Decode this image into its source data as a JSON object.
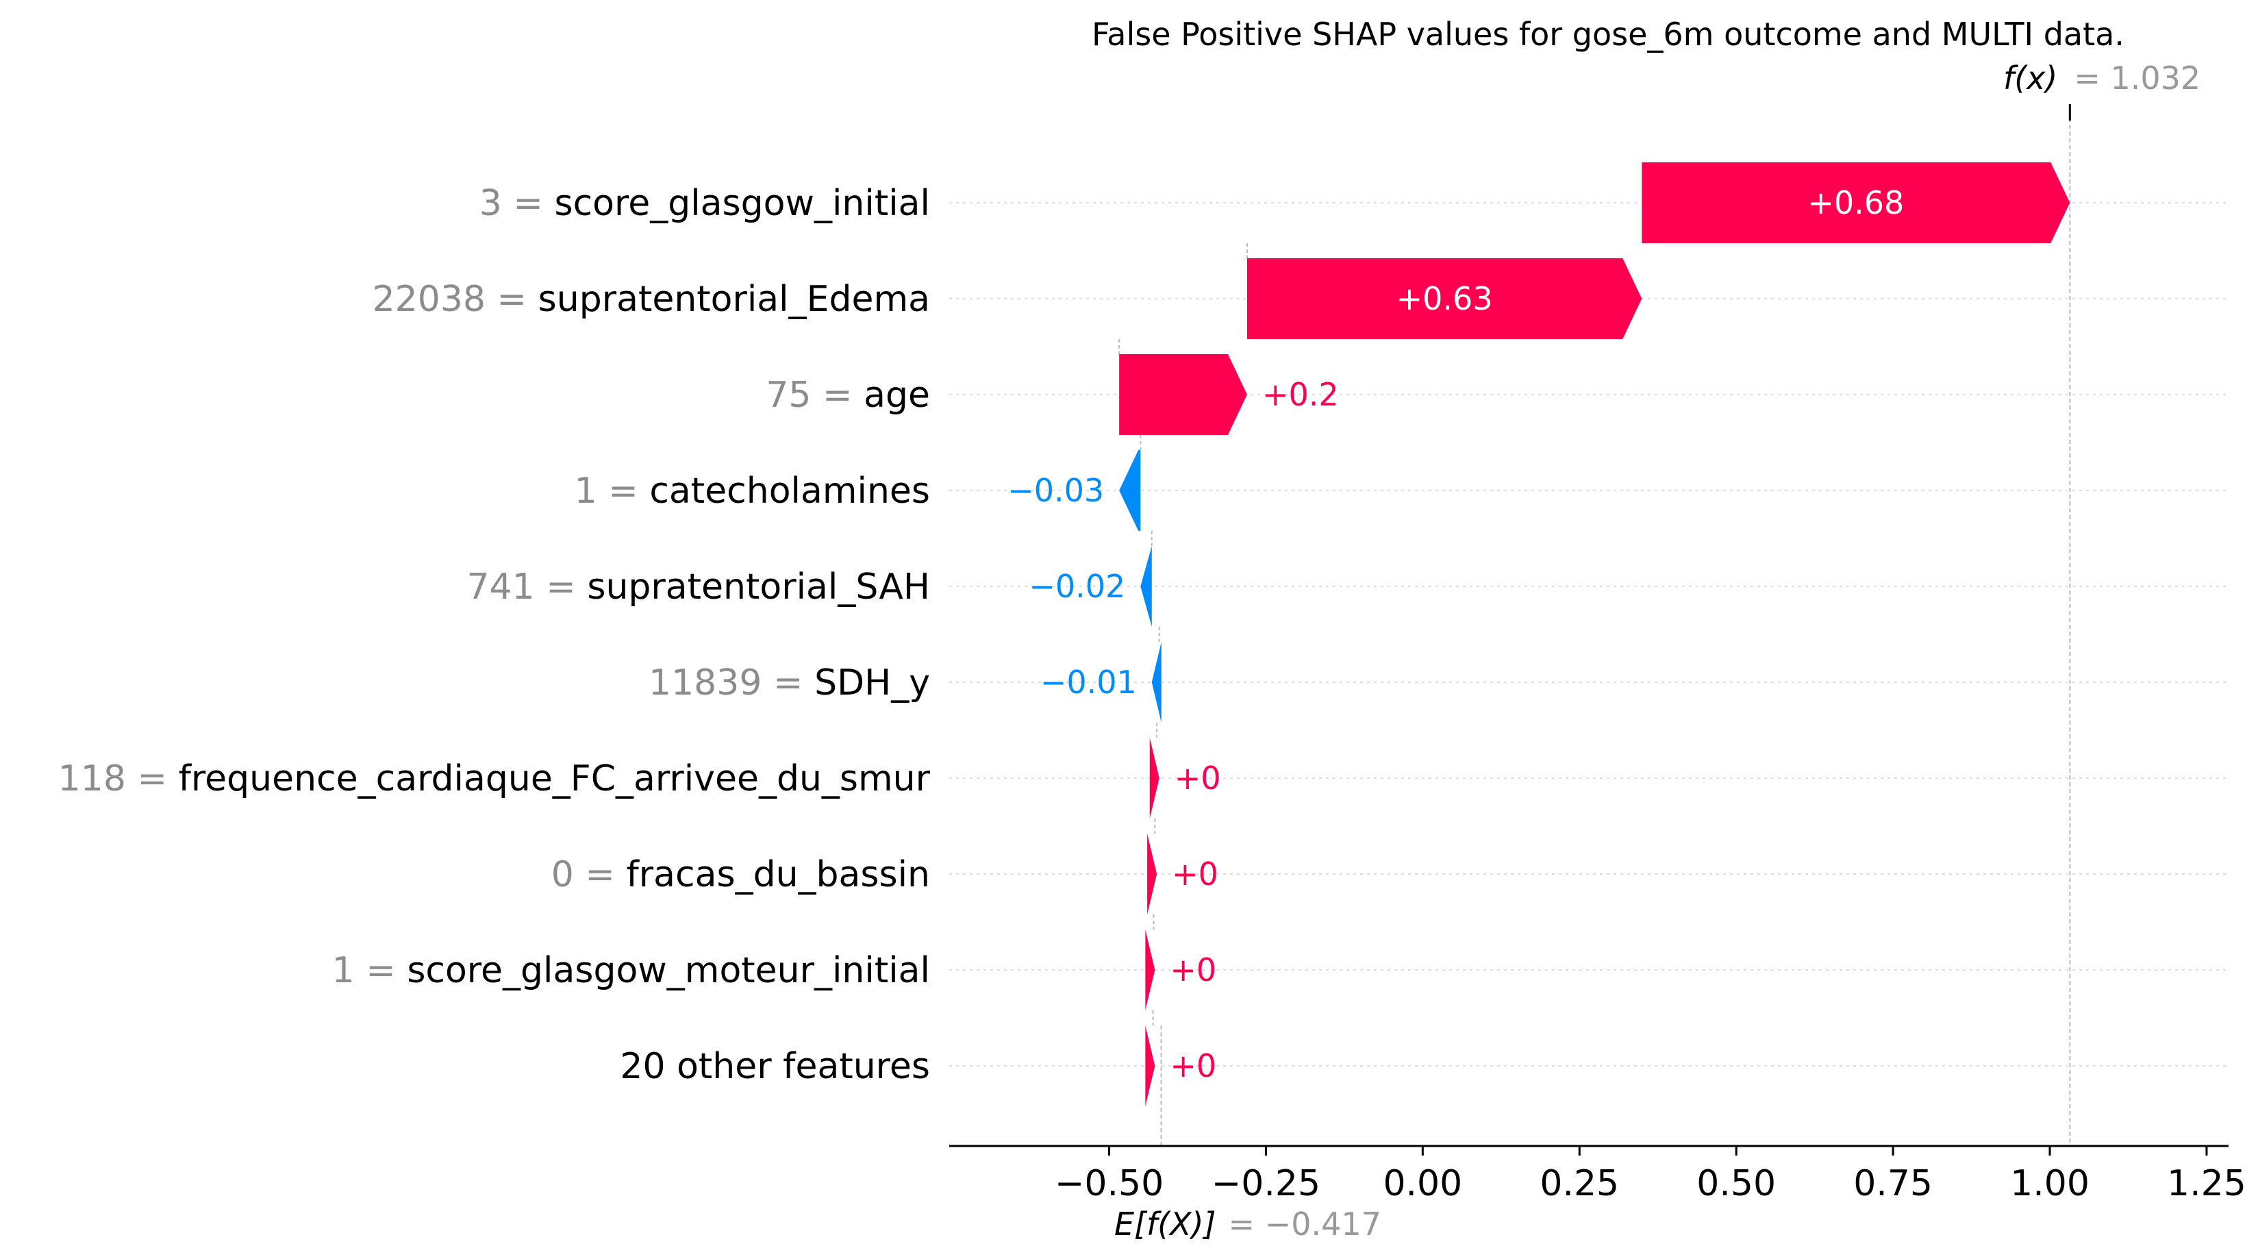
{
  "chart_data": {
    "type": "waterfall",
    "title": "False Positive SHAP values for gose_6m outcome and MULTI data.",
    "base_value": -0.417,
    "base_label": "E[f(X)]",
    "base_value_text": "= −0.417",
    "output_value": 1.032,
    "output_label": "f(x)",
    "output_value_text": "= 1.032",
    "xlim": [
      -0.755,
      1.285
    ],
    "xticks": [
      -0.5,
      -0.25,
      0.0,
      0.25,
      0.5,
      0.75,
      1.0,
      1.25
    ],
    "xtick_labels": [
      "−0.50",
      "−0.25",
      "0.00",
      "0.25",
      "0.50",
      "0.75",
      "1.00",
      "1.25"
    ],
    "colors": {
      "positive": "#ff0051",
      "negative": "#008bfb"
    },
    "features": [
      {
        "value": "3",
        "name": "score_glasgow_initial",
        "start": 0.3494,
        "shap": 0.6826,
        "label": "+0.68"
      },
      {
        "value": "22038",
        "name": "supratentorial_Edema",
        "start": -0.28,
        "shap": 0.6294,
        "label": "+0.63"
      },
      {
        "value": "75",
        "name": "age",
        "start": -0.484,
        "shap": 0.204,
        "label": "+0.2"
      },
      {
        "value": "1",
        "name": "catecholamines",
        "start": -0.45,
        "shap": -0.034,
        "label": "−0.03"
      },
      {
        "value": "741",
        "name": "supratentorial_SAH",
        "start": -0.432,
        "shap": -0.018,
        "label": "−0.02"
      },
      {
        "value": "11839",
        "name": "SDH_y",
        "start": -0.42,
        "shap": -0.012,
        "label": "−0.01"
      },
      {
        "value": "118",
        "name": "frequence_cardiaque_FC_arrivee_du_smur",
        "start": -0.424,
        "shap": 0.004,
        "label": "+0"
      },
      {
        "value": "0",
        "name": "fracas_du_bassin",
        "start": -0.427,
        "shap": 0.003,
        "label": "+0"
      },
      {
        "value": "1",
        "name": "score_glasgow_moteur_initial",
        "start": -0.429,
        "shap": 0.002,
        "label": "+0"
      },
      {
        "value": "",
        "name": "20 other features",
        "start": -0.43,
        "shap": 0.003,
        "label": "+0"
      }
    ]
  }
}
